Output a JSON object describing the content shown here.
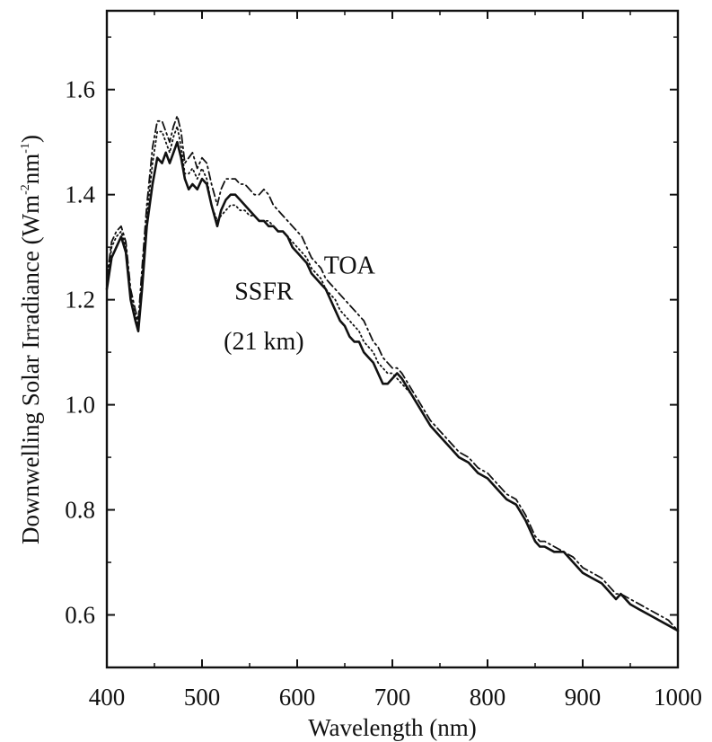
{
  "chart_data": {
    "type": "line",
    "title": "",
    "xlabel": "Wavelength (nm)",
    "ylabel": {
      "prefix": "Downwelling Solar Irradiance (Wm",
      "sup1": "-2",
      "mid": "nm",
      "sup2": "-1",
      "suffix": ")"
    },
    "xlim": [
      400,
      1000
    ],
    "ylim": [
      0.5,
      1.75
    ],
    "xticks": [
      400,
      500,
      600,
      700,
      800,
      900,
      1000
    ],
    "xtick_labels": [
      "400",
      "500",
      "600",
      "700",
      "800",
      "900",
      "1000"
    ],
    "yticks": [
      0.6,
      0.8,
      1.0,
      1.2,
      1.4,
      1.6
    ],
    "ytick_labels": [
      "0.6",
      "0.8",
      "1.0",
      "1.2",
      "1.4",
      "1.6"
    ],
    "grid": false,
    "annotations": [
      {
        "text": "TOA",
        "x": 655,
        "y": 1.25
      },
      {
        "text": "SSFR",
        "x": 565,
        "y": 1.2
      },
      {
        "text": "(21 km)",
        "x": 565,
        "y": 1.105
      }
    ],
    "series": [
      {
        "style": "solid",
        "color": "#111111",
        "x": [
          400,
          405,
          410,
          415,
          420,
          425,
          430,
          433,
          437,
          442,
          448,
          453,
          458,
          462,
          466,
          470,
          474,
          478,
          482,
          486,
          490,
          495,
          500,
          505,
          510,
          516,
          520,
          525,
          530,
          535,
          540,
          545,
          550,
          555,
          560,
          565,
          570,
          575,
          580,
          585,
          590,
          595,
          600,
          605,
          610,
          615,
          620,
          625,
          630,
          635,
          640,
          645,
          650,
          655,
          660,
          665,
          670,
          675,
          680,
          685,
          690,
          695,
          700,
          705,
          710,
          720,
          730,
          740,
          750,
          760,
          770,
          780,
          790,
          800,
          810,
          820,
          830,
          840,
          845,
          850,
          855,
          860,
          870,
          880,
          890,
          900,
          910,
          920,
          930,
          935,
          940,
          950,
          960,
          970,
          980,
          990,
          1000
        ],
        "y": [
          1.22,
          1.28,
          1.3,
          1.32,
          1.29,
          1.2,
          1.16,
          1.14,
          1.22,
          1.34,
          1.42,
          1.47,
          1.46,
          1.48,
          1.46,
          1.48,
          1.5,
          1.47,
          1.43,
          1.41,
          1.42,
          1.41,
          1.43,
          1.42,
          1.38,
          1.34,
          1.37,
          1.39,
          1.4,
          1.4,
          1.39,
          1.38,
          1.37,
          1.36,
          1.35,
          1.35,
          1.34,
          1.34,
          1.33,
          1.33,
          1.32,
          1.3,
          1.29,
          1.28,
          1.27,
          1.25,
          1.24,
          1.23,
          1.22,
          1.2,
          1.18,
          1.16,
          1.15,
          1.13,
          1.12,
          1.12,
          1.1,
          1.09,
          1.08,
          1.06,
          1.04,
          1.04,
          1.05,
          1.06,
          1.05,
          1.02,
          0.99,
          0.96,
          0.94,
          0.92,
          0.9,
          0.89,
          0.87,
          0.86,
          0.84,
          0.82,
          0.81,
          0.78,
          0.76,
          0.74,
          0.73,
          0.73,
          0.72,
          0.72,
          0.7,
          0.68,
          0.67,
          0.66,
          0.64,
          0.63,
          0.64,
          0.62,
          0.61,
          0.6,
          0.59,
          0.58,
          0.57
        ]
      },
      {
        "style": "dashdot",
        "color": "#111111",
        "x": [
          400,
          405,
          410,
          415,
          420,
          425,
          430,
          433,
          437,
          442,
          448,
          453,
          458,
          462,
          466,
          470,
          474,
          478,
          482,
          486,
          490,
          495,
          500,
          505,
          510,
          516,
          520,
          525,
          530,
          535,
          540,
          545,
          550,
          555,
          560,
          565,
          570,
          575,
          580,
          585,
          590,
          595,
          600,
          605,
          610,
          615,
          620,
          625,
          630,
          635,
          640,
          645,
          650,
          655,
          660,
          665,
          670,
          675,
          680,
          685,
          690,
          695,
          700,
          705,
          710,
          720,
          730,
          740,
          750,
          760,
          770,
          780,
          790,
          800,
          810,
          820,
          830,
          840,
          845,
          850,
          855,
          860,
          870,
          880,
          890,
          900,
          910,
          920,
          930,
          935,
          940,
          950,
          960,
          970,
          980,
          990,
          1000
        ],
        "y": [
          1.24,
          1.31,
          1.33,
          1.34,
          1.31,
          1.22,
          1.18,
          1.16,
          1.26,
          1.38,
          1.49,
          1.54,
          1.54,
          1.52,
          1.5,
          1.53,
          1.55,
          1.52,
          1.46,
          1.47,
          1.48,
          1.45,
          1.47,
          1.46,
          1.42,
          1.38,
          1.41,
          1.43,
          1.43,
          1.43,
          1.42,
          1.42,
          1.41,
          1.4,
          1.4,
          1.41,
          1.4,
          1.38,
          1.37,
          1.36,
          1.35,
          1.34,
          1.33,
          1.32,
          1.3,
          1.28,
          1.27,
          1.26,
          1.24,
          1.23,
          1.22,
          1.21,
          1.2,
          1.19,
          1.18,
          1.17,
          1.16,
          1.14,
          1.12,
          1.11,
          1.09,
          1.08,
          1.07,
          1.07,
          1.06,
          1.03,
          1.0,
          0.97,
          0.95,
          0.93,
          0.91,
          0.9,
          0.88,
          0.87,
          0.85,
          0.83,
          0.82,
          0.79,
          0.77,
          0.75,
          0.74,
          0.74,
          0.73,
          0.72,
          0.71,
          0.69,
          0.68,
          0.67,
          0.65,
          0.64,
          0.64,
          0.63,
          0.62,
          0.61,
          0.6,
          0.59,
          0.57
        ]
      },
      {
        "style": "dotted",
        "color": "#111111",
        "x": [
          400,
          405,
          410,
          415,
          420,
          425,
          430,
          433,
          437,
          442,
          448,
          453,
          458,
          462,
          466,
          470,
          474,
          478,
          482,
          486,
          490,
          495,
          500,
          505,
          510,
          516,
          520,
          525,
          530,
          535,
          540,
          545,
          550,
          555,
          560,
          565,
          570,
          575,
          580,
          585,
          590,
          595,
          600,
          605,
          610,
          615,
          620,
          625,
          630,
          635,
          640,
          645,
          650,
          655,
          660,
          665,
          670,
          675,
          680,
          685,
          690,
          695,
          700,
          705,
          710,
          720,
          730,
          740,
          750,
          760,
          770,
          780,
          790,
          800,
          810,
          820,
          830,
          840,
          845,
          850,
          855,
          860,
          870,
          880,
          890,
          900,
          910,
          920,
          930,
          935,
          940,
          950,
          960,
          970,
          980,
          990,
          1000
        ],
        "y": [
          1.23,
          1.3,
          1.32,
          1.33,
          1.3,
          1.21,
          1.17,
          1.15,
          1.24,
          1.36,
          1.46,
          1.52,
          1.52,
          1.5,
          1.48,
          1.51,
          1.53,
          1.49,
          1.44,
          1.44,
          1.45,
          1.43,
          1.45,
          1.43,
          1.38,
          1.35,
          1.36,
          1.37,
          1.38,
          1.38,
          1.37,
          1.37,
          1.36,
          1.36,
          1.35,
          1.35,
          1.35,
          1.34,
          1.33,
          1.33,
          1.32,
          1.31,
          1.3,
          1.29,
          1.28,
          1.26,
          1.25,
          1.24,
          1.22,
          1.21,
          1.2,
          1.18,
          1.17,
          1.16,
          1.15,
          1.14,
          1.12,
          1.11,
          1.1,
          1.08,
          1.07,
          1.06,
          1.06,
          1.05,
          1.04,
          1.02,
          0.99,
          0.96,
          0.94,
          0.92,
          0.9,
          0.89,
          0.87,
          0.86,
          0.84,
          0.82,
          0.81,
          0.78,
          0.76,
          0.74,
          0.73,
          0.73,
          0.72,
          0.72,
          0.7,
          0.68,
          0.67,
          0.66,
          0.64,
          0.63,
          0.64,
          0.62,
          0.61,
          0.6,
          0.59,
          0.58,
          0.57
        ]
      }
    ]
  }
}
